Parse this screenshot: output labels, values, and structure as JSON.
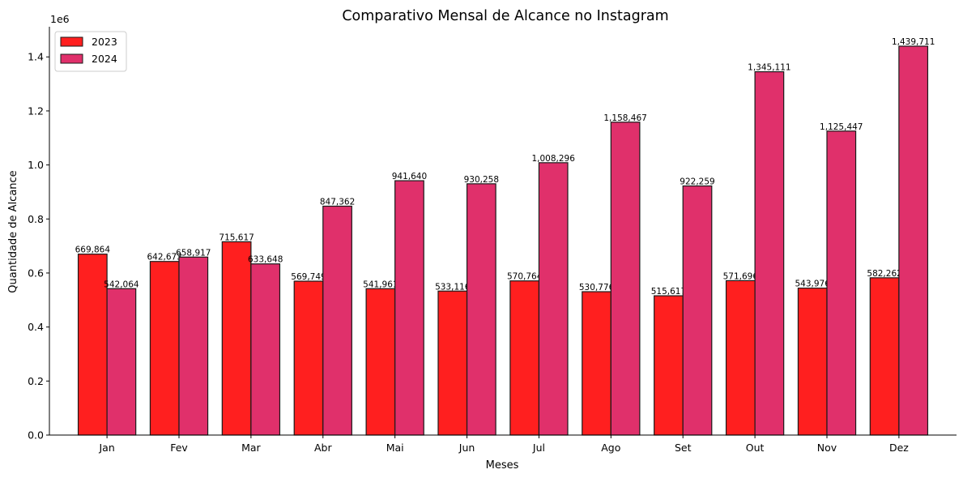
{
  "chart_data": {
    "type": "bar",
    "title": "Comparativo Mensal de Alcance no Instagram",
    "xlabel": "Meses",
    "ylabel": "Quantidade de Alcance",
    "y_offset_label": "1e6",
    "ylim": [
      0,
      1511697
    ],
    "yticks": [
      0,
      200000,
      400000,
      600000,
      800000,
      1000000,
      1200000,
      1400000
    ],
    "ytick_labels": [
      "0.0",
      "0.2",
      "0.4",
      "0.6",
      "0.8",
      "1.0",
      "1.2",
      "1.4"
    ],
    "categories": [
      "Jan",
      "Fev",
      "Mar",
      "Abr",
      "Mai",
      "Jun",
      "Jul",
      "Ago",
      "Set",
      "Out",
      "Nov",
      "Dez"
    ],
    "series": [
      {
        "name": "2023",
        "color": "#ff1f1f",
        "values": [
          669864,
          642673,
          715617,
          569749,
          541961,
          533116,
          570764,
          530776,
          515617,
          571696,
          543976,
          582262
        ],
        "labels": [
          "669,864",
          "642,673",
          "715,617",
          "569,749",
          "541,961",
          "533,116",
          "570,764",
          "530,776",
          "515,617",
          "571,696",
          "543,976",
          "582,262"
        ]
      },
      {
        "name": "2024",
        "color": "#e0306b",
        "values": [
          542064,
          658917,
          633648,
          847362,
          941640,
          930258,
          1008296,
          1158467,
          922259,
          1345111,
          1125447,
          1439711
        ],
        "labels": [
          "542,064",
          "658,917",
          "633,648",
          "847,362",
          "941,640",
          "930,258",
          "1,008,296",
          "1,158,467",
          "922,259",
          "1,345,111",
          "1,125,447",
          "1,439,711"
        ]
      }
    ],
    "legend_position": "top-left",
    "grid": false
  }
}
